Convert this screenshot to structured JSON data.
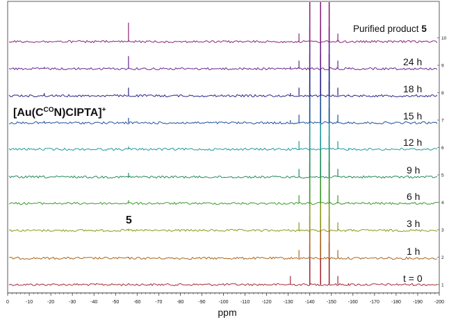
{
  "chart_data": {
    "type": "line",
    "chart_kind": "stacked NMR spectra",
    "xlabel": "ppm",
    "x_axis": {
      "range": [
        0,
        -200
      ],
      "reversed": false,
      "ticks": [
        0,
        -10,
        -20,
        -30,
        -40,
        -50,
        -60,
        -70,
        -80,
        -90,
        -100,
        -110,
        -120,
        -130,
        -140,
        -150,
        -160,
        -170,
        -180,
        -190,
        -200
      ],
      "tick_labels": [
        "0",
        "-10",
        "-20",
        "-30",
        "-40",
        "-50",
        "-60",
        "-70",
        "-80",
        "-90",
        "-100",
        "-110",
        "-120",
        "-130",
        "-140",
        "-150",
        "-160",
        "-170",
        "-180",
        "-190",
        "-200"
      ]
    },
    "y_axis": {
      "position": "right",
      "ticks": [
        1,
        2,
        3,
        4,
        5,
        6,
        7,
        8,
        9,
        10
      ],
      "tick_labels": [
        "1",
        "2",
        "3",
        "4",
        "5",
        "6",
        "7",
        "8",
        "9",
        "10"
      ]
    },
    "grid": false,
    "annotations": [
      {
        "text": "[Au(C",
        "sup": "CO",
        "text2": "N)ClPTA]",
        "sup2": "+",
        "near_ppm": -17
      },
      {
        "text": "5",
        "near_ppm": -56,
        "bold": true
      }
    ],
    "series": [
      {
        "name": "t = 0",
        "color": "#a52a35",
        "peaks": [
          {
            "ppm": -131,
            "h": 0.95
          },
          {
            "ppm": -140,
            "h": 4.6
          },
          {
            "ppm": -145,
            "h": 4.6
          },
          {
            "ppm": -149,
            "h": 4.6
          },
          {
            "ppm": -153,
            "h": 0.95
          },
          {
            "ppm": -158,
            "h": 0.15
          }
        ]
      },
      {
        "name": "1 h",
        "color": "#a8651c",
        "peaks": [
          {
            "ppm": -56,
            "h": 0.1
          },
          {
            "ppm": -135,
            "h": 0.9
          },
          {
            "ppm": -140,
            "h": 4.6
          },
          {
            "ppm": -145,
            "h": 4.6
          },
          {
            "ppm": -149,
            "h": 4.6
          },
          {
            "ppm": -153,
            "h": 0.9
          },
          {
            "ppm": -158,
            "h": 0.1
          }
        ]
      },
      {
        "name": "3 h",
        "color": "#8a9a18",
        "peaks": [
          {
            "ppm": -56,
            "h": 0.2
          },
          {
            "ppm": -135,
            "h": 0.9
          },
          {
            "ppm": -140,
            "h": 4.6
          },
          {
            "ppm": -145,
            "h": 4.6
          },
          {
            "ppm": -149,
            "h": 4.6
          },
          {
            "ppm": -153,
            "h": 0.9
          },
          {
            "ppm": -158,
            "h": 0.1
          }
        ]
      },
      {
        "name": "6 h",
        "color": "#3a9a2a",
        "peaks": [
          {
            "ppm": -56,
            "h": 0.35
          },
          {
            "ppm": -135,
            "h": 0.9
          },
          {
            "ppm": -140,
            "h": 4.6
          },
          {
            "ppm": -145,
            "h": 4.6
          },
          {
            "ppm": -149,
            "h": 4.6
          },
          {
            "ppm": -153,
            "h": 0.9
          },
          {
            "ppm": -158,
            "h": 0.12
          }
        ]
      },
      {
        "name": "9 h",
        "color": "#218a5a",
        "peaks": [
          {
            "ppm": -56,
            "h": 0.45
          },
          {
            "ppm": -135,
            "h": 0.9
          },
          {
            "ppm": -140,
            "h": 4.6
          },
          {
            "ppm": -145,
            "h": 4.6
          },
          {
            "ppm": -149,
            "h": 4.6
          },
          {
            "ppm": -153,
            "h": 0.9
          },
          {
            "ppm": -158,
            "h": 0.12
          }
        ]
      },
      {
        "name": "12 h",
        "color": "#1f9a9a",
        "peaks": [
          {
            "ppm": -56,
            "h": 0.3
          },
          {
            "ppm": -135,
            "h": 0.9
          },
          {
            "ppm": -140,
            "h": 4.6
          },
          {
            "ppm": -145,
            "h": 4.6
          },
          {
            "ppm": -149,
            "h": 4.6
          },
          {
            "ppm": -153,
            "h": 0.9
          },
          {
            "ppm": -158,
            "h": 0.12
          }
        ]
      },
      {
        "name": "15 h",
        "color": "#1f4f9a",
        "peaks": [
          {
            "ppm": -17,
            "h": 0.2
          },
          {
            "ppm": -56,
            "h": 0.55
          },
          {
            "ppm": -131,
            "h": 0.3
          },
          {
            "ppm": -135,
            "h": 0.9
          },
          {
            "ppm": -140,
            "h": 4.6
          },
          {
            "ppm": -145,
            "h": 4.6
          },
          {
            "ppm": -149,
            "h": 4.6
          },
          {
            "ppm": -153,
            "h": 0.9
          },
          {
            "ppm": -158,
            "h": 0.12
          }
        ]
      },
      {
        "name": "18 h",
        "color": "#28248a",
        "peaks": [
          {
            "ppm": -17,
            "h": 0.3
          },
          {
            "ppm": -56,
            "h": 0.9
          },
          {
            "ppm": -131,
            "h": 0.3
          },
          {
            "ppm": -135,
            "h": 0.9
          },
          {
            "ppm": -140,
            "h": 4.6
          },
          {
            "ppm": -145,
            "h": 4.6
          },
          {
            "ppm": -149,
            "h": 4.6
          },
          {
            "ppm": -153,
            "h": 0.9
          },
          {
            "ppm": -158,
            "h": 0.12
          }
        ]
      },
      {
        "name": "24 h",
        "color": "#6a248a",
        "peaks": [
          {
            "ppm": -17,
            "h": 0.2
          },
          {
            "ppm": -56,
            "h": 1.4
          },
          {
            "ppm": -131,
            "h": 0.25
          },
          {
            "ppm": -135,
            "h": 0.9
          },
          {
            "ppm": -140,
            "h": 4.6
          },
          {
            "ppm": -145,
            "h": 4.6
          },
          {
            "ppm": -149,
            "h": 4.6
          },
          {
            "ppm": -153,
            "h": 0.9
          },
          {
            "ppm": -158,
            "h": 0.12
          }
        ]
      },
      {
        "name": "Purified product 5",
        "name_bold_suffix": "5",
        "color": "#8a2478",
        "peaks": [
          {
            "ppm": -56,
            "h": 2.1
          },
          {
            "ppm": -135,
            "h": 0.9
          },
          {
            "ppm": -140,
            "h": 4.6
          },
          {
            "ppm": -145,
            "h": 4.6
          },
          {
            "ppm": -149,
            "h": 4.6
          },
          {
            "ppm": -153,
            "h": 0.9
          }
        ]
      }
    ]
  },
  "labels": {
    "t0": "t = 0",
    "h1": "1 h",
    "h3": "3 h",
    "h6": "6 h",
    "h9": "9 h",
    "h12": "12 h",
    "h15": "15 h",
    "h18": "18 h",
    "h24": "24 h",
    "purified_prefix": "Purified product",
    "purified_bold": "5"
  }
}
